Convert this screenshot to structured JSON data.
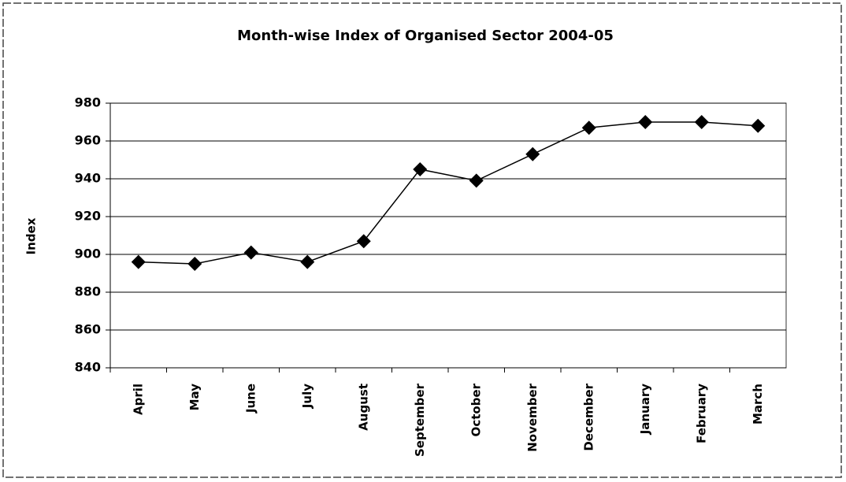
{
  "chart_data": {
    "type": "line",
    "title": "Month-wise Index of Organised Sector 2004-05",
    "y_label": "Index",
    "categories": [
      "April",
      "May",
      "June",
      "July",
      "August",
      "September",
      "October",
      "November",
      "December",
      "January",
      "February",
      "March"
    ],
    "series": [
      {
        "name": "Index",
        "color": "#000000",
        "values": [
          896,
          895,
          901,
          896,
          907,
          945,
          939,
          953,
          967,
          970,
          970,
          968
        ]
      }
    ],
    "ylim": [
      840,
      980
    ],
    "yticks": [
      840,
      860,
      880,
      900,
      920,
      940,
      960,
      980
    ],
    "grid": true
  }
}
